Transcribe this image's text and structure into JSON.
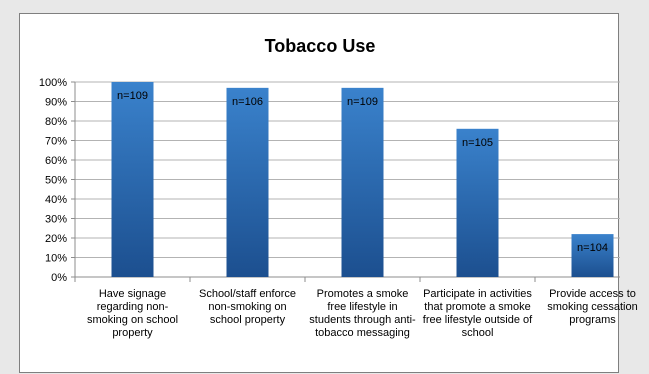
{
  "chart_data": {
    "type": "bar",
    "title": "Tobacco Use",
    "xlabel": "",
    "ylabel": "",
    "ylim": [
      0,
      100
    ],
    "y_unit": "%",
    "y_ticks": [
      "0%",
      "10%",
      "20%",
      "30%",
      "40%",
      "50%",
      "60%",
      "70%",
      "80%",
      "90%",
      "100%"
    ],
    "grid": true,
    "legend": "none",
    "bar_color": "#2e6fb8",
    "categories": [
      "Have signage regarding non-smoking on school property",
      "School/staff enforce non-smoking on school property",
      "Promotes a smoke free lifestyle in students through anti-tobacco messaging",
      "Participate in activities that promote a smoke free lifestyle outside of school",
      "Provide access to smoking cessation programs"
    ],
    "values": [
      100,
      97,
      97,
      76,
      22
    ],
    "data_labels": [
      "n=109",
      "n=106",
      "n=109",
      "n=105",
      "n=104"
    ]
  }
}
